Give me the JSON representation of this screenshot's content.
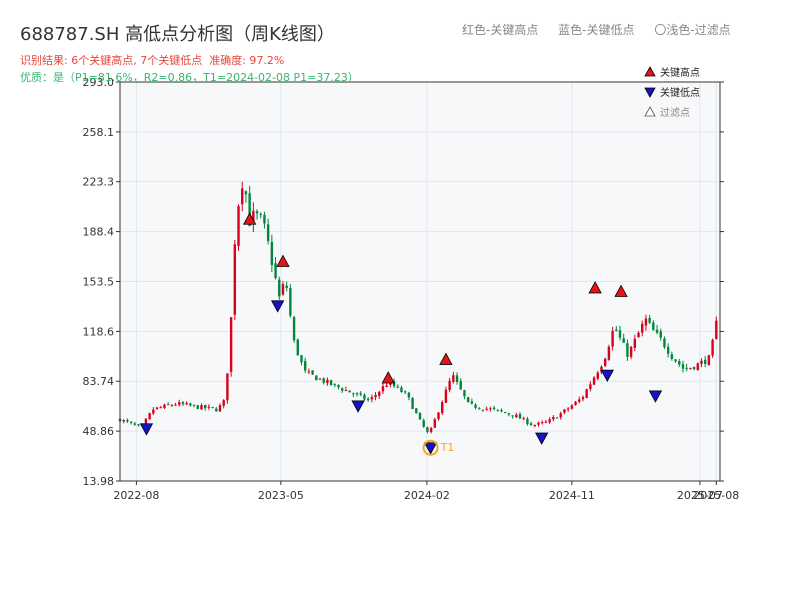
{
  "header": {
    "title": "688787.SH 高低点分析图（周K线图）",
    "legend_red": "红色-关键高点",
    "legend_blue": "蓝色-关键低点",
    "legend_filtered": "〇浅色-过滤点",
    "result_text": "识别结果: 6个关键高点, 7个关键低点",
    "accuracy_text": "准确度: 97.2%",
    "quality_text": "优质：是（P1=81.6%，R2=0.86，T1=2024-02-08 P1=37.23）"
  },
  "colors": {
    "up": "#d9001b",
    "down": "#00873c",
    "high_marker": "#e8141b",
    "low_marker": "#1414c8",
    "t1_marker": "#f5a623",
    "grid": "#e2e6ec",
    "plot_bg": "#f7f8fa",
    "axis": "#333333"
  },
  "chart_data": {
    "type": "candlestick",
    "title": "688787.SH 高低点分析图（周K线图）",
    "x_ticks": [
      "2022-08",
      "2023-05",
      "2024-02",
      "2024-11",
      "2025-07",
      "2025-08"
    ],
    "y_ticks": [
      13.98,
      48.86,
      83.74,
      118.6,
      153.5,
      188.4,
      223.3,
      258.1,
      293.0
    ],
    "y_tick_labels": [
      "13.98",
      "48.86",
      "83.74",
      "118.6",
      "153.5",
      "188.4",
      "223.3",
      "258.1",
      "293.0"
    ],
    "ylim": [
      13.98,
      293.0
    ],
    "xlim": [
      "2022-07-01",
      "2025-08-08"
    ],
    "legend": {
      "placement": "top-right",
      "items": [
        {
          "label": "关键高点",
          "marker": "triangle-up",
          "color": "#e8141b"
        },
        {
          "label": "关键低点",
          "marker": "triangle-down",
          "color": "#1414c8"
        },
        {
          "label": "过滤点",
          "marker": "triangle-up-hollow",
          "color": "#bbbbbb"
        }
      ]
    },
    "anchors": [
      [
        "2022-07-01",
        57
      ],
      [
        "2022-08-10",
        51
      ],
      [
        "2022-09-01",
        64
      ],
      [
        "2022-10-15",
        68
      ],
      [
        "2022-11-20",
        66
      ],
      [
        "2023-01-01",
        64
      ],
      [
        "2023-01-15",
        70
      ],
      [
        "2023-01-25",
        112
      ],
      [
        "2023-02-05",
        198
      ],
      [
        "2023-02-20",
        230
      ],
      [
        "2023-03-01",
        195
      ],
      [
        "2023-03-12",
        200
      ],
      [
        "2023-03-28",
        195
      ],
      [
        "2023-04-10",
        175
      ],
      [
        "2023-04-28",
        142
      ],
      [
        "2023-05-10",
        155
      ],
      [
        "2023-05-25",
        112
      ],
      [
        "2023-06-15",
        90
      ],
      [
        "2023-08-01",
        82
      ],
      [
        "2023-09-10",
        76
      ],
      [
        "2023-10-15",
        70
      ],
      [
        "2023-11-20",
        83
      ],
      [
        "2023-12-25",
        74
      ],
      [
        "2024-01-20",
        55
      ],
      [
        "2024-02-05",
        46
      ],
      [
        "2024-03-01",
        70
      ],
      [
        "2024-03-20",
        88
      ],
      [
        "2024-04-20",
        67
      ],
      [
        "2024-06-01",
        64
      ],
      [
        "2024-07-15",
        60
      ],
      [
        "2024-08-20",
        53
      ],
      [
        "2024-09-15",
        55
      ],
      [
        "2024-10-15",
        62
      ],
      [
        "2024-11-20",
        72
      ],
      [
        "2025-01-01",
        99
      ],
      [
        "2025-01-20",
        122
      ],
      [
        "2025-02-15",
        102
      ],
      [
        "2025-03-20",
        127
      ],
      [
        "2025-04-05",
        118
      ],
      [
        "2025-04-20",
        112
      ],
      [
        "2025-05-10",
        101
      ],
      [
        "2025-06-01",
        92
      ],
      [
        "2025-06-25",
        95
      ],
      [
        "2025-07-20",
        100
      ],
      [
        "2025-08-05",
        132
      ]
    ],
    "key_highs": [
      {
        "date": "2023-03-03",
        "value": 197.0
      },
      {
        "date": "2023-05-05",
        "value": 167.5
      },
      {
        "date": "2023-11-20",
        "value": 86.0
      },
      {
        "date": "2024-03-08",
        "value": 99.0
      },
      {
        "date": "2024-12-15",
        "value": 149.0
      },
      {
        "date": "2025-02-02",
        "value": 146.5
      }
    ],
    "key_lows": [
      {
        "date": "2022-08-20",
        "value": 50.5
      },
      {
        "date": "2023-04-25",
        "value": 136.5
      },
      {
        "date": "2023-09-24",
        "value": 66.5
      },
      {
        "date": "2024-02-08",
        "value": 37.23
      },
      {
        "date": "2024-09-05",
        "value": 44.0
      },
      {
        "date": "2025-01-07",
        "value": 88.0
      },
      {
        "date": "2025-04-08",
        "value": 73.5
      }
    ],
    "t1": {
      "date": "2024-02-08",
      "value": 37.23,
      "label": "T1"
    }
  }
}
